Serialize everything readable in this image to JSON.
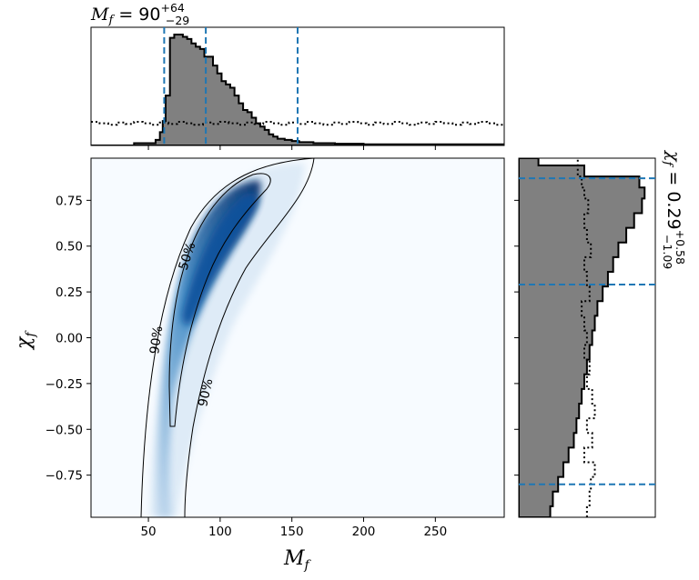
{
  "chart_data": {
    "type": "corner",
    "top_title": {
      "name": "M",
      "sub": "f",
      "eq": " = ",
      "value": "90",
      "plus": "+64",
      "minus": "−29"
    },
    "right_title": {
      "name": "χ",
      "sub": "f",
      "eq": " = ",
      "value": "0.29",
      "plus": "+0.58",
      "minus": "−1.09"
    },
    "xlabel": {
      "name": "M",
      "sub": "f"
    },
    "ylabel": {
      "name": "χ",
      "sub": "f"
    },
    "xlim": [
      10,
      298
    ],
    "ylim": [
      -0.98,
      0.98
    ],
    "x_ticks": [
      50,
      100,
      150,
      200,
      250
    ],
    "x_tick_labels": [
      "50",
      "100",
      "150",
      "200",
      "250"
    ],
    "y_ticks": [
      0.75,
      0.5,
      0.25,
      0.0,
      -0.25,
      -0.5,
      -0.75
    ],
    "y_tick_labels": [
      "0.75",
      "0.50",
      "0.25",
      "0.00",
      "−0.25",
      "−0.50",
      "−0.75"
    ],
    "mass_quantiles": [
      61,
      90,
      154
    ],
    "spin_quantiles": [
      0.87,
      0.29,
      -0.8
    ],
    "contour_labels": [
      "50%",
      "90%",
      "90%"
    ],
    "mass_histogram": {
      "edges": [
        10,
        40,
        55,
        58,
        60,
        62,
        65,
        68,
        71,
        74,
        77,
        80,
        83,
        86,
        89,
        92,
        95,
        98,
        101,
        104,
        107,
        110,
        113,
        116,
        119,
        122,
        125,
        128,
        131,
        134,
        137,
        140,
        145,
        150,
        155,
        165,
        180,
        200,
        298
      ],
      "posterior": [
        0.0,
        0.02,
        0.05,
        0.12,
        0.22,
        0.45,
        0.97,
        1.0,
        1.0,
        0.98,
        0.96,
        0.92,
        0.89,
        0.87,
        0.8,
        0.8,
        0.72,
        0.65,
        0.58,
        0.55,
        0.52,
        0.45,
        0.38,
        0.32,
        0.3,
        0.25,
        0.2,
        0.17,
        0.14,
        0.1,
        0.08,
        0.06,
        0.05,
        0.04,
        0.03,
        0.02,
        0.015,
        0.01
      ],
      "prior_level": 0.2
    },
    "spin_histogram": {
      "edges": [
        -0.98,
        -0.92,
        -0.84,
        -0.76,
        -0.68,
        -0.6,
        -0.52,
        -0.44,
        -0.36,
        -0.28,
        -0.2,
        -0.12,
        -0.04,
        0.04,
        0.12,
        0.2,
        0.28,
        0.36,
        0.44,
        0.52,
        0.6,
        0.68,
        0.76,
        0.82,
        0.88,
        0.94,
        0.98
      ],
      "posterior": [
        0.24,
        0.26,
        0.3,
        0.34,
        0.38,
        0.42,
        0.44,
        0.46,
        0.48,
        0.5,
        0.52,
        0.54,
        0.56,
        0.58,
        0.6,
        0.64,
        0.68,
        0.72,
        0.76,
        0.82,
        0.88,
        0.94,
        0.96,
        0.92,
        0.5,
        0.15
      ],
      "prior": [
        0.52,
        0.54,
        0.55,
        0.58,
        0.5,
        0.56,
        0.52,
        0.58,
        0.56,
        0.52,
        0.54,
        0.5,
        0.52,
        0.5,
        0.48,
        0.54,
        0.52,
        0.5,
        0.55,
        0.52,
        0.5,
        0.53,
        0.5,
        0.48,
        0.45,
        0.45
      ]
    }
  }
}
